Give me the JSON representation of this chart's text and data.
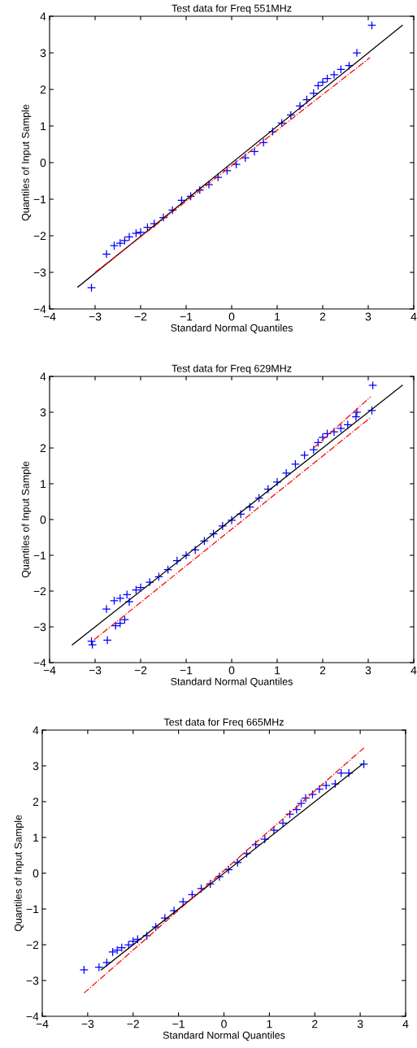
{
  "chart_data": [
    {
      "type": "scatter",
      "title": "Test data for Freq 551MHz",
      "xlabel": "Standard Normal Quantiles",
      "ylabel": "Quantiles of Input Sample",
      "xlim": [
        -4,
        4
      ],
      "ylim": [
        -4,
        4
      ],
      "xticks": [
        -4,
        -3,
        -2,
        -1,
        0,
        1,
        2,
        3,
        4
      ],
      "yticks": [
        -4,
        -3,
        -2,
        -1,
        0,
        1,
        2,
        3,
        4
      ],
      "grid": false,
      "legend": false,
      "series": [
        {
          "marker": "cross",
          "color": "#0000ff",
          "x": [
            -3.08,
            -2.75,
            -2.58,
            -2.45,
            -2.35,
            -2.25,
            -2.1,
            -2.0,
            -1.85,
            -1.7,
            -1.5,
            -1.3,
            -1.1,
            -0.9,
            -0.7,
            -0.5,
            -0.3,
            -0.1,
            0.1,
            0.3,
            0.5,
            0.7,
            0.9,
            1.1,
            1.3,
            1.5,
            1.65,
            1.8,
            1.9,
            2.0,
            2.1,
            2.25,
            2.4,
            2.58,
            2.75,
            3.08
          ],
          "values": [
            -3.42,
            -2.5,
            -2.27,
            -2.2,
            -2.13,
            -2.03,
            -1.93,
            -1.9,
            -1.77,
            -1.67,
            -1.5,
            -1.3,
            -1.03,
            -0.92,
            -0.75,
            -0.6,
            -0.4,
            -0.22,
            -0.05,
            0.13,
            0.3,
            0.55,
            0.85,
            1.08,
            1.3,
            1.55,
            1.72,
            1.9,
            2.1,
            2.2,
            2.3,
            2.4,
            2.55,
            2.65,
            3.0,
            3.75
          ]
        },
        {
          "type": "line",
          "line_style": "solid",
          "color": "#000000",
          "x": [
            -3.38,
            3.75
          ],
          "values": [
            -3.4,
            3.75
          ]
        },
        {
          "type": "line",
          "line_style": "dashed",
          "color": "#ff0000",
          "x": [
            -3.0,
            3.04
          ],
          "values": [
            -3.0,
            2.87
          ]
        }
      ]
    },
    {
      "type": "scatter",
      "title": "Test data for Freq 629MHz",
      "xlabel": "Standard Normal Quantiles",
      "ylabel": "Quantiles of Input Sample",
      "xlim": [
        -4,
        4
      ],
      "ylim": [
        -4,
        4
      ],
      "xticks": [
        -4,
        -3,
        -2,
        -1,
        0,
        1,
        2,
        3,
        4
      ],
      "yticks": [
        -4,
        -3,
        -2,
        -1,
        0,
        1,
        2,
        3,
        4
      ],
      "grid": false,
      "legend": false,
      "series": [
        {
          "marker": "cross",
          "color": "#0000ff",
          "x": [
            -3.08,
            -3.06,
            -2.73,
            -2.75,
            -2.55,
            -2.45,
            -2.35,
            -2.58,
            -2.45,
            -2.3,
            -2.25,
            -2.1,
            -2.0,
            -1.8,
            -1.6,
            -1.4,
            -1.2,
            -1.0,
            -0.8,
            -0.6,
            -0.4,
            -0.2,
            0.0,
            0.2,
            0.4,
            0.6,
            0.8,
            1.0,
            1.2,
            1.4,
            1.6,
            1.8,
            1.9,
            2.0,
            2.1,
            2.25,
            2.4,
            2.55,
            2.73,
            2.75,
            3.08,
            3.1
          ],
          "values": [
            -3.4,
            -3.5,
            -3.37,
            -2.5,
            -2.97,
            -2.9,
            -2.8,
            -2.27,
            -2.2,
            -2.1,
            -2.3,
            -1.97,
            -1.9,
            -1.75,
            -1.6,
            -1.4,
            -1.15,
            -1.0,
            -0.85,
            -0.6,
            -0.4,
            -0.18,
            -0.02,
            0.15,
            0.35,
            0.6,
            0.85,
            1.05,
            1.3,
            1.55,
            1.8,
            1.95,
            2.15,
            2.3,
            2.4,
            2.45,
            2.55,
            2.65,
            2.87,
            3.0,
            3.05,
            3.75
          ]
        },
        {
          "type": "line",
          "line_style": "solid",
          "color": "#000000",
          "x": [
            -3.5,
            3.75
          ],
          "values": [
            -3.5,
            3.75
          ]
        },
        {
          "type": "line",
          "line_style": "dashed",
          "color": "#ff0000",
          "x": [
            -3.02,
            3.05
          ],
          "values": [
            -3.36,
            2.85
          ]
        },
        {
          "type": "line",
          "line_style": "dashed",
          "color": "#ff0000",
          "x": [
            1.8,
            3.05
          ],
          "values": [
            2.0,
            3.43
          ]
        }
      ]
    },
    {
      "type": "scatter",
      "title": "Test data for Freq 665MHz",
      "xlabel": "Standard Normal Quantiles",
      "ylabel": "Quantiles of Input Sample",
      "xlim": [
        -4,
        4
      ],
      "ylim": [
        -4,
        4
      ],
      "xticks": [
        -4,
        -3,
        -2,
        -1,
        0,
        1,
        2,
        3,
        4
      ],
      "yticks": [
        -4,
        -3,
        -2,
        -1,
        0,
        1,
        2,
        3,
        4
      ],
      "grid": false,
      "legend": false,
      "series": [
        {
          "marker": "cross",
          "color": "#0000ff",
          "x": [
            -3.08,
            -2.75,
            -2.58,
            -2.45,
            -2.35,
            -2.25,
            -2.1,
            -2.0,
            -1.9,
            -1.7,
            -1.5,
            -1.3,
            -1.1,
            -0.9,
            -0.7,
            -0.5,
            -0.3,
            -0.1,
            0.1,
            0.3,
            0.5,
            0.7,
            0.9,
            1.1,
            1.3,
            1.45,
            1.6,
            1.7,
            1.8,
            1.95,
            2.1,
            2.25,
            2.45,
            2.58,
            2.75,
            3.08
          ],
          "values": [
            -2.7,
            -2.63,
            -2.5,
            -2.2,
            -2.15,
            -2.08,
            -2.0,
            -1.9,
            -1.85,
            -1.75,
            -1.5,
            -1.25,
            -1.05,
            -0.8,
            -0.6,
            -0.43,
            -0.3,
            -0.1,
            0.1,
            0.3,
            0.55,
            0.8,
            0.95,
            1.2,
            1.4,
            1.65,
            1.78,
            1.95,
            2.1,
            2.2,
            2.35,
            2.45,
            2.5,
            2.8,
            2.8,
            3.05
          ]
        },
        {
          "type": "line",
          "line_style": "solid",
          "color": "#000000",
          "x": [
            -2.7,
            3.05
          ],
          "values": [
            -2.7,
            3.05
          ]
        },
        {
          "type": "line",
          "line_style": "dashed",
          "color": "#ff0000",
          "x": [
            -3.08,
            3.08
          ],
          "values": [
            -3.35,
            3.5
          ]
        }
      ]
    }
  ]
}
